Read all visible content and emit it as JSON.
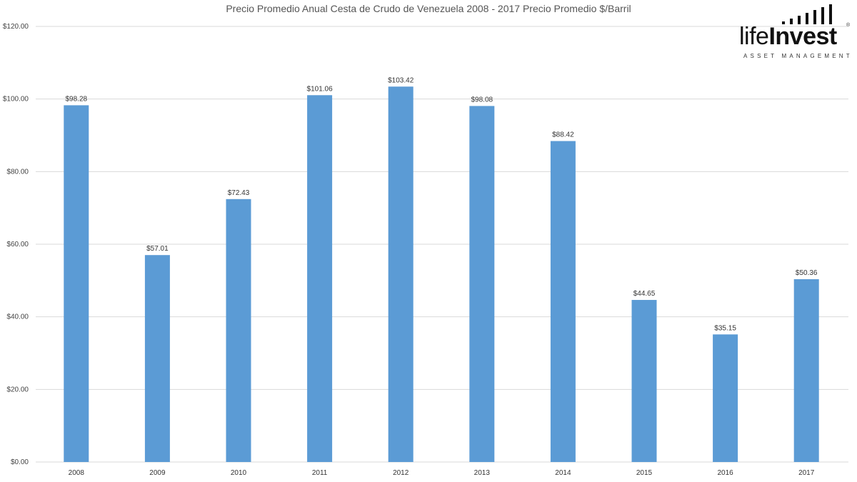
{
  "chart_data": {
    "type": "bar",
    "title": "Precio Promedio Anual Cesta de Crudo de Venezuela 2008 - 2017 Precio Promedio $/Barril",
    "categories": [
      "2008",
      "2009",
      "2010",
      "2011",
      "2012",
      "2013",
      "2014",
      "2015",
      "2016",
      "2017"
    ],
    "values": [
      98.28,
      57.01,
      72.43,
      101.06,
      103.42,
      98.08,
      88.42,
      44.65,
      35.15,
      50.36
    ],
    "data_labels": [
      "$98.28",
      "$57.01",
      "$72.43",
      "$101.06",
      "$103.42",
      "$98.08",
      "$88.42",
      "$44.65",
      "$35.15",
      "$50.36"
    ],
    "yticks": [
      0,
      20,
      40,
      60,
      80,
      100,
      120
    ],
    "ytick_labels": [
      "$0.00",
      "$20.00",
      "$40.00",
      "$60.00",
      "$80.00",
      "$100.00",
      "$120.00"
    ],
    "ylim": [
      0,
      120
    ],
    "grid": true,
    "bar_color": "#5b9bd5",
    "grid_color": "#d9d9d9"
  },
  "logo": {
    "name_part1": "life",
    "name_part2": "Invest",
    "subtitle": "ASSET MANAGEMENT",
    "registered": "®"
  }
}
